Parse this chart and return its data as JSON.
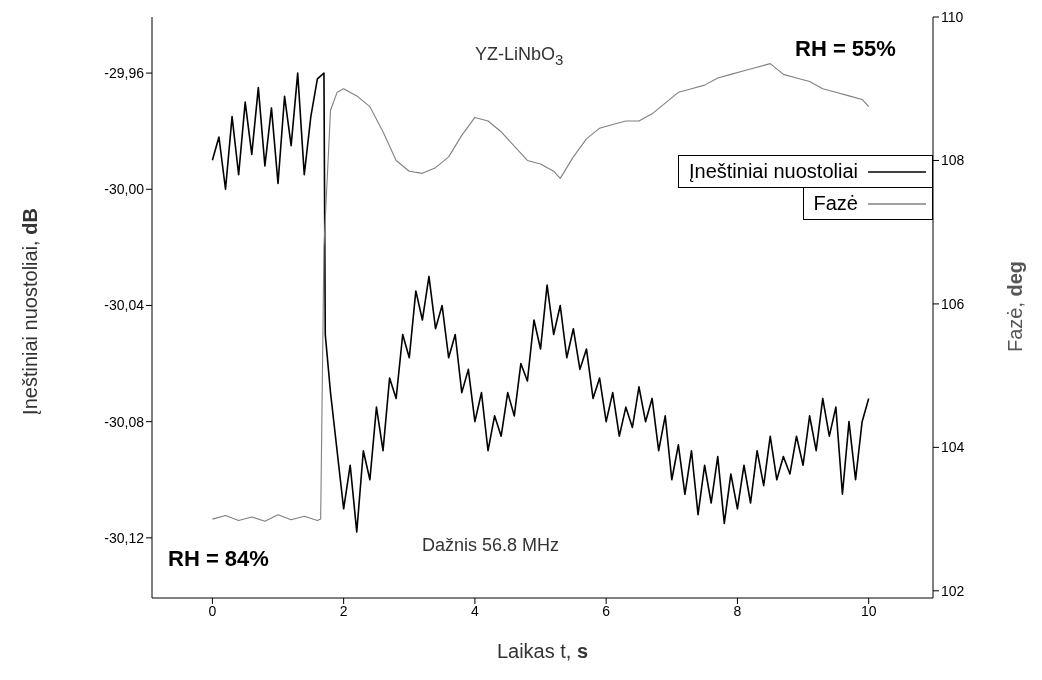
{
  "chart_data": {
    "type": "line",
    "xlabel": "Laikas t, s",
    "ylabel": "Įneštiniai nuostoliai, dB",
    "y2label": "Fazė, deg",
    "annotations": [
      "YZ-LiNbO$_{3}$",
      "RH = 55%",
      "RH = 84%",
      "Dažnis 56.8 MHz"
    ],
    "xlim": [
      -0.92,
      10.98
    ],
    "xticks": [
      0,
      2,
      4,
      6,
      8,
      10
    ],
    "ylim": [
      -30.1407,
      -29.9407
    ],
    "yticks": [
      {
        "value": -30.12,
        "label": "-30,12"
      },
      {
        "value": -30.08,
        "label": "-30,08"
      },
      {
        "value": -30.04,
        "label": "-30,04"
      },
      {
        "value": -30,
        "label": "-30,00"
      },
      {
        "value": -29.96,
        "label": "-29,96"
      }
    ],
    "y2lim": [
      101.9,
      110
    ],
    "y2ticks": [
      102,
      104,
      106,
      108,
      110
    ],
    "legend": "top right",
    "marker": "none",
    "line_style": "solid",
    "series": [
      {
        "name": "Įneštiniai nuostoliai",
        "color": "#000000",
        "x": [
          0,
          0.1,
          0.2,
          0.3,
          0.4,
          0.5,
          0.6,
          0.7,
          0.8,
          0.9,
          1,
          1.1,
          1.2,
          1.3,
          1.4,
          1.5,
          1.6,
          1.7,
          1.72,
          1.8,
          1.9,
          2,
          2.1,
          2.2,
          2.3,
          2.4,
          2.5,
          2.6,
          2.7,
          2.8,
          2.9,
          3,
          3.1,
          3.2,
          3.3,
          3.4,
          3.5,
          3.6,
          3.7,
          3.8,
          3.9,
          4,
          4.1,
          4.2,
          4.3,
          4.4,
          4.5,
          4.6,
          4.7,
          4.8,
          4.9,
          5,
          5.1,
          5.2,
          5.3,
          5.4,
          5.5,
          5.6,
          5.7,
          5.8,
          5.9,
          6,
          6.1,
          6.2,
          6.3,
          6.4,
          6.5,
          6.6,
          6.7,
          6.8,
          6.9,
          7,
          7.1,
          7.2,
          7.3,
          7.4,
          7.5,
          7.6,
          7.7,
          7.8,
          7.9,
          8,
          8.1,
          8.2,
          8.3,
          8.4,
          8.5,
          8.6,
          8.7,
          8.8,
          8.9,
          9,
          9.1,
          9.2,
          9.3,
          9.4,
          9.5,
          9.6,
          9.7,
          9.8,
          9.9,
          10
        ],
        "values": [
          -29.99,
          -29.982,
          -30,
          -29.975,
          -29.995,
          -29.97,
          -29.988,
          -29.965,
          -29.992,
          -29.972,
          -29.998,
          -29.968,
          -29.985,
          -29.96,
          -29.995,
          -29.975,
          -29.962,
          -29.96,
          -30.05,
          -30.07,
          -30.09,
          -30.11,
          -30.095,
          -30.118,
          -30.09,
          -30.1,
          -30.075,
          -30.09,
          -30.065,
          -30.072,
          -30.05,
          -30.058,
          -30.035,
          -30.045,
          -30.03,
          -30.048,
          -30.04,
          -30.058,
          -30.05,
          -30.07,
          -30.062,
          -30.08,
          -30.07,
          -30.09,
          -30.078,
          -30.085,
          -30.07,
          -30.078,
          -30.06,
          -30.066,
          -30.045,
          -30.055,
          -30.033,
          -30.05,
          -30.04,
          -30.058,
          -30.048,
          -30.062,
          -30.055,
          -30.072,
          -30.065,
          -30.08,
          -30.07,
          -30.085,
          -30.075,
          -30.082,
          -30.068,
          -30.08,
          -30.072,
          -30.09,
          -30.078,
          -30.1,
          -30.088,
          -30.105,
          -30.09,
          -30.112,
          -30.095,
          -30.108,
          -30.092,
          -30.115,
          -30.098,
          -30.11,
          -30.095,
          -30.108,
          -30.09,
          -30.102,
          -30.085,
          -30.1,
          -30.092,
          -30.098,
          -30.085,
          -30.095,
          -30.078,
          -30.09,
          -30.072,
          -30.085,
          -30.075,
          -30.105,
          -30.08,
          -30.1,
          -30.08,
          -30.072
        ]
      },
      {
        "name": "Fazė",
        "color": "#808080",
        "axis": "y2",
        "x": [
          0,
          0.2,
          0.4,
          0.6,
          0.8,
          1,
          1.2,
          1.4,
          1.6,
          1.65,
          1.7,
          1.8,
          1.9,
          2,
          2.2,
          2.4,
          2.6,
          2.8,
          3,
          3.2,
          3.4,
          3.6,
          3.8,
          4,
          4.2,
          4.4,
          4.6,
          4.8,
          5,
          5.2,
          5.3,
          5.5,
          5.7,
          5.9,
          6.1,
          6.3,
          6.5,
          6.7,
          6.9,
          7.1,
          7.3,
          7.5,
          7.7,
          7.9,
          8.1,
          8.3,
          8.5,
          8.7,
          8.9,
          9.1,
          9.3,
          9.5,
          9.7,
          9.9,
          10
        ],
        "values": [
          103,
          103.05,
          102.98,
          103.03,
          102.97,
          103.06,
          102.99,
          103.04,
          102.98,
          103,
          106.8,
          108.7,
          108.95,
          109,
          108.9,
          108.75,
          108.4,
          108,
          107.85,
          107.82,
          107.9,
          108.05,
          108.35,
          108.6,
          108.55,
          108.4,
          108.2,
          108,
          107.95,
          107.85,
          107.75,
          108.05,
          108.3,
          108.45,
          108.5,
          108.55,
          108.55,
          108.65,
          108.8,
          108.95,
          109,
          109.05,
          109.15,
          109.2,
          109.25,
          109.3,
          109.35,
          109.2,
          109.15,
          109.1,
          109,
          108.95,
          108.9,
          108.85,
          108.75
        ]
      }
    ]
  }
}
